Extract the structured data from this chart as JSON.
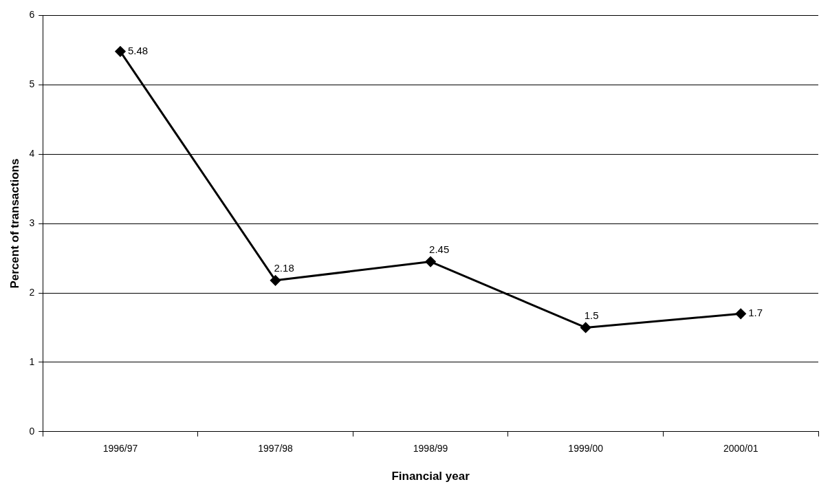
{
  "chart_data": {
    "type": "line",
    "xlabel": "Financial year",
    "ylabel": "Percent of transactions",
    "categories": [
      "1996/97",
      "1997/98",
      "1998/99",
      "1999/00",
      "2000/01"
    ],
    "series": [
      {
        "color": "#000000",
        "values": [
          5.48,
          2.18,
          2.45,
          1.5,
          1.7
        ]
      }
    ],
    "ylim": [
      0,
      6
    ],
    "yticks": [
      0,
      1,
      2,
      3,
      4,
      5,
      6
    ],
    "grid": "y",
    "legend": false,
    "marker": "diamond",
    "line_style": "solid",
    "data_labels": true
  }
}
